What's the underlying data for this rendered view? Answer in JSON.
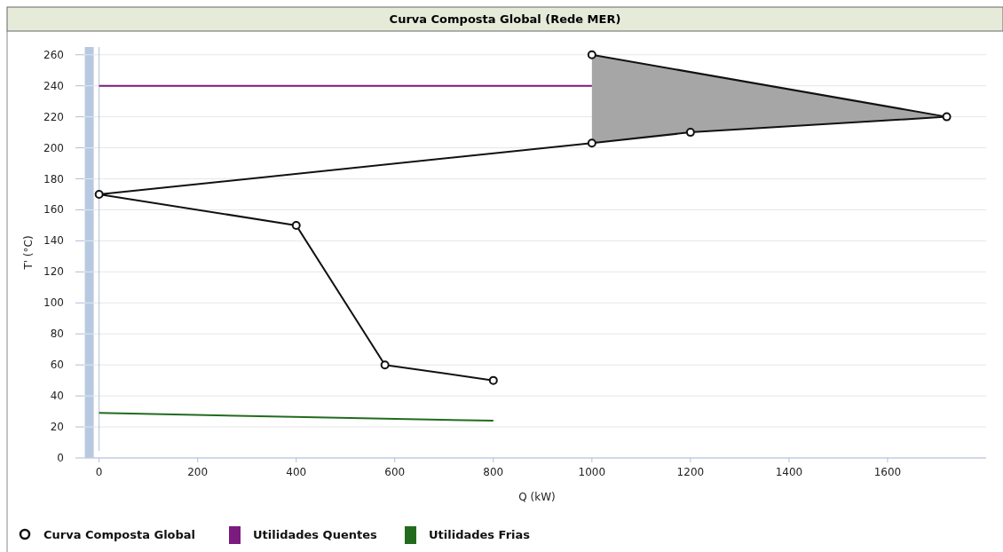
{
  "chart_data": {
    "type": "line",
    "title": "Curva Composta Global (Rede MER)",
    "xlabel": "Q (kW)",
    "ylabel": "T' (°C)",
    "xlim": [
      -30,
      1800
    ],
    "xticks": [
      0,
      200,
      400,
      600,
      800,
      1000,
      1200,
      1400,
      1600
    ],
    "ylim": [
      0,
      265
    ],
    "yticks": [
      0,
      20,
      40,
      60,
      80,
      100,
      120,
      140,
      160,
      180,
      200,
      220,
      240,
      260
    ],
    "grid": "y",
    "legend": "bottom left",
    "bands": [
      {
        "axis": "x",
        "from": -29,
        "to": -11,
        "color": "#b7c9e0"
      }
    ],
    "series": [
      {
        "type": "area",
        "color": "#a6a6a6",
        "x": [
          1000,
          1200,
          1720,
          1000
        ],
        "values": [
          203,
          210,
          220,
          260
        ]
      },
      {
        "name": "Utilidades Quentes",
        "color": "#7b1a7f",
        "x": [
          0,
          1000
        ],
        "values": [
          240,
          240
        ],
        "marker": "none"
      },
      {
        "name": "Utilidades Frias",
        "color": "#226b1e",
        "x": [
          0,
          800
        ],
        "values": [
          29,
          24
        ],
        "marker": "none"
      },
      {
        "name": "Curva Composta Global",
        "color": "#111111",
        "x": [
          800,
          580,
          400,
          0,
          1000,
          1200,
          1720,
          1000
        ],
        "values": [
          50,
          60,
          150,
          170,
          203,
          210,
          220,
          260
        ],
        "marker": "circle"
      }
    ]
  }
}
